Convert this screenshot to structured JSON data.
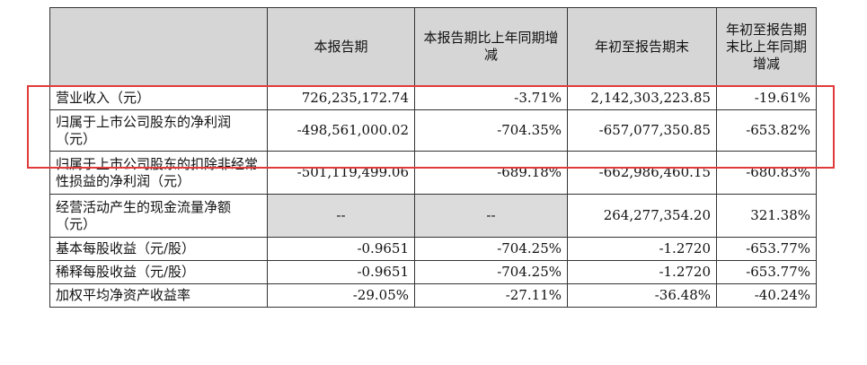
{
  "headers": [
    "",
    "本报告期",
    "本报告期比上年同期增减",
    "年初至报告期末",
    "年初至报告期末比上年同期增减"
  ],
  "rows": [
    {
      "label": "营业收入（元）",
      "current": "726,235,172.74",
      "yoy": "-3.71%",
      "ytd": "2,142,303,223.85",
      "ytd_yoy": "-19.61%"
    },
    {
      "label": "归属于上市公司股东的净利润（元）",
      "current": "-498,561,000.02",
      "yoy": "-704.35%",
      "ytd": "-657,077,350.85",
      "ytd_yoy": "-653.82%"
    },
    {
      "label": "归属于上市公司股东的扣除非经常性损益的净利润（元）",
      "current": "-501,119,499.06",
      "yoy": "-689.18%",
      "ytd": "-662,986,460.15",
      "ytd_yoy": "-680.83%"
    },
    {
      "label": "经营活动产生的现金流量净额（元）",
      "current": "--",
      "yoy": "--",
      "ytd": "264,277,354.20",
      "ytd_yoy": "321.38%"
    },
    {
      "label": "基本每股收益（元/股）",
      "current": "-0.9651",
      "yoy": "-704.25%",
      "ytd": "-1.2720",
      "ytd_yoy": "-653.77%"
    },
    {
      "label": "稀释每股收益（元/股）",
      "current": "-0.9651",
      "yoy": "-704.25%",
      "ytd": "-1.2720",
      "ytd_yoy": "-653.77%"
    },
    {
      "label": "加权平均净资产收益率",
      "current": "-29.05%",
      "yoy": "-27.11%",
      "ytd": "-36.48%",
      "ytd_yoy": "-40.24%"
    }
  ],
  "colors": {
    "header_bg": "#d6d6d6",
    "highlight": "#e03b3b"
  }
}
